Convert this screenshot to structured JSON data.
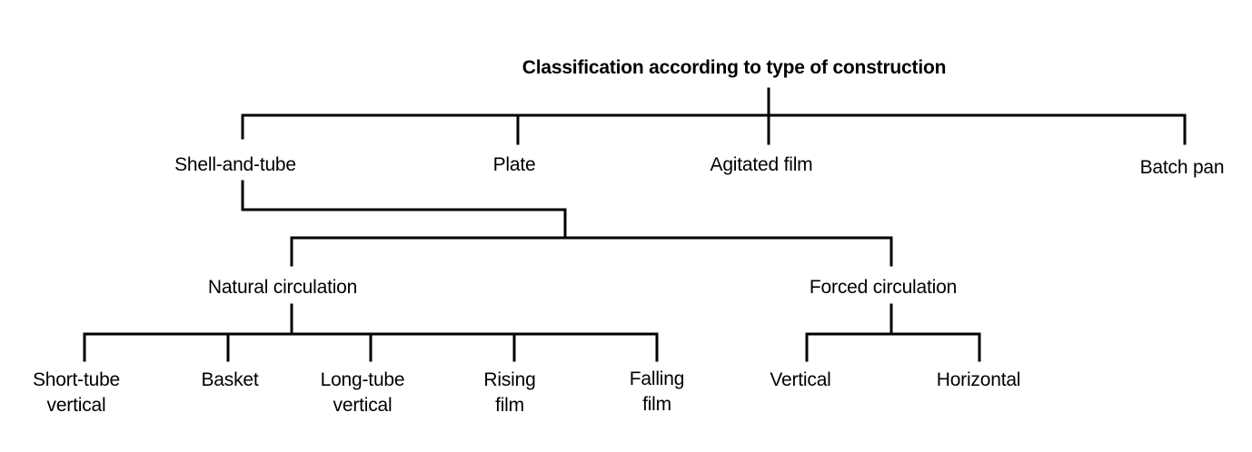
{
  "diagram": {
    "title": "Classification according to type of construction",
    "level1": {
      "shell_and_tube": "Shell-and-tube",
      "plate": "Plate",
      "agitated_film": "Agitated film",
      "batch_pan": "Batch pan"
    },
    "level2": {
      "natural": "Natural circulation",
      "forced": "Forced circulation"
    },
    "natural_children": {
      "short_tube": {
        "line1": "Short-tube",
        "line2": "vertical"
      },
      "basket": "Basket",
      "long_tube": {
        "line1": "Long-tube",
        "line2": "vertical"
      },
      "rising": {
        "line1": "Rising",
        "line2": "film"
      },
      "falling": {
        "line1": "Falling",
        "line2": "film"
      }
    },
    "forced_children": {
      "vertical": "Vertical",
      "horizontal": "Horizontal"
    }
  },
  "colors": {
    "line": "#000000",
    "text": "#000000",
    "background": "#ffffff"
  }
}
